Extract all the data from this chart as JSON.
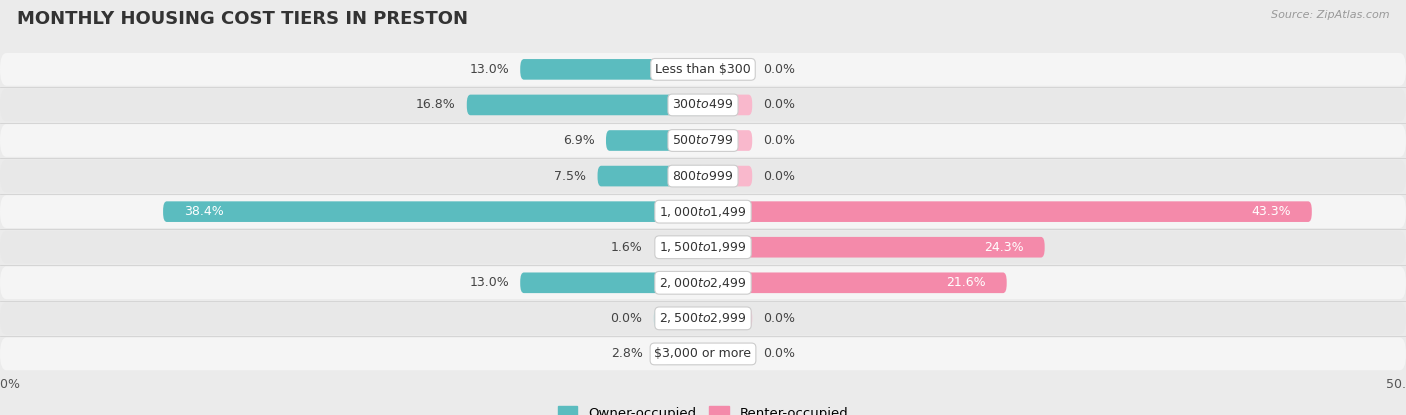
{
  "title": "MONTHLY HOUSING COST TIERS IN PRESTON",
  "source": "Source: ZipAtlas.com",
  "categories": [
    "Less than $300",
    "$300 to $499",
    "$500 to $799",
    "$800 to $999",
    "$1,000 to $1,499",
    "$1,500 to $1,999",
    "$2,000 to $2,499",
    "$2,500 to $2,999",
    "$3,000 or more"
  ],
  "owner_values": [
    13.0,
    16.8,
    6.9,
    7.5,
    38.4,
    1.6,
    13.0,
    0.0,
    2.8
  ],
  "renter_values": [
    0.0,
    0.0,
    0.0,
    0.0,
    43.3,
    24.3,
    21.6,
    0.0,
    0.0
  ],
  "owner_color": "#5bbcbf",
  "renter_color": "#f48aaa",
  "owner_color_light": "#a8dde0",
  "renter_color_light": "#f9b8cc",
  "background_color": "#ebebeb",
  "row_bg_even": "#f5f5f5",
  "row_bg_odd": "#e8e8e8",
  "axis_limit": 50.0,
  "min_bar": 3.5,
  "legend_owner": "Owner-occupied",
  "legend_renter": "Renter-occupied",
  "title_fontsize": 13,
  "label_fontsize": 9,
  "value_fontsize": 9
}
